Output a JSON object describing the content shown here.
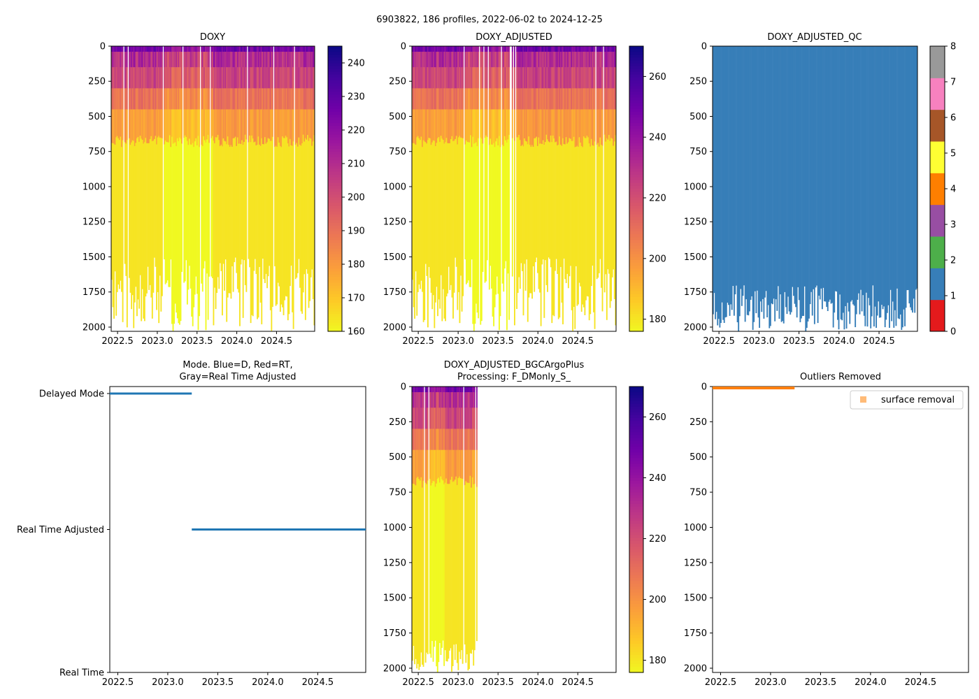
{
  "suptitle": "6903822, 186 profiles, 2022-06-02 to 2024-12-25",
  "colors": {
    "plasma": [
      "#0d0887",
      "#46039f",
      "#7201a8",
      "#9c179e",
      "#bd3786",
      "#d8576b",
      "#ed7953",
      "#fb9f3a",
      "#fdca26",
      "#f0f921"
    ],
    "qc": [
      "#e41a1c",
      "#377eb8",
      "#4daf4a",
      "#984ea3",
      "#ff7f00",
      "#ffff33",
      "#a65628",
      "#f781bf",
      "#999999"
    ],
    "mode_line": "#1f77b4",
    "outlier": "#ff7f0e",
    "outlier_legend_marker": "#ffbb78"
  },
  "chart_data": [
    {
      "id": "doxy",
      "type": "heatmap",
      "title": "DOXY",
      "xticks": [
        "2022.5",
        "2023.0",
        "2023.5",
        "2024.0",
        "2024.5"
      ],
      "xtick_values": [
        2022.5,
        2023.0,
        2023.5,
        2024.0,
        2024.5
      ],
      "xlim": [
        2022.42,
        2024.98
      ],
      "yticks": [
        "0",
        "250",
        "500",
        "750",
        "1000",
        "1250",
        "1500",
        "1750",
        "2000"
      ],
      "ytick_values": [
        0,
        250,
        500,
        750,
        1000,
        1250,
        1500,
        1750,
        2000
      ],
      "ylim": [
        2030,
        0
      ],
      "colorbar": {
        "ticks": [
          "160",
          "170",
          "180",
          "190",
          "200",
          "210",
          "220",
          "230",
          "240"
        ],
        "tick_values": [
          160,
          170,
          180,
          190,
          200,
          210,
          220,
          230,
          240
        ],
        "range": [
          160,
          245
        ]
      },
      "profile_time_range": [
        2022.42,
        2024.98
      ],
      "profiles": 186
    },
    {
      "id": "doxy_adj",
      "type": "heatmap",
      "title": "DOXY_ADJUSTED",
      "xticks": [
        "2022.5",
        "2023.0",
        "2023.5",
        "2024.0",
        "2024.5"
      ],
      "xtick_values": [
        2022.5,
        2023.0,
        2023.5,
        2024.0,
        2024.5
      ],
      "xlim": [
        2022.42,
        2024.98
      ],
      "yticks": [
        "0",
        "250",
        "500",
        "750",
        "1000",
        "1250",
        "1500",
        "1750",
        "2000"
      ],
      "ytick_values": [
        0,
        250,
        500,
        750,
        1000,
        1250,
        1500,
        1750,
        2000
      ],
      "ylim": [
        2030,
        0
      ],
      "colorbar": {
        "ticks": [
          "180",
          "200",
          "220",
          "240",
          "260"
        ],
        "tick_values": [
          180,
          200,
          220,
          240,
          260
        ],
        "range": [
          176,
          270
        ]
      },
      "profile_time_range": [
        2022.42,
        2024.98
      ],
      "profiles": 186
    },
    {
      "id": "doxy_qc",
      "type": "heatmap",
      "title": "DOXY_ADJUSTED_QC",
      "xticks": [
        "2022.5",
        "2023.0",
        "2023.5",
        "2024.0",
        "2024.5"
      ],
      "xtick_values": [
        2022.5,
        2023.0,
        2023.5,
        2024.0,
        2024.5
      ],
      "xlim": [
        2022.42,
        2024.98
      ],
      "yticks": [
        "0",
        "250",
        "500",
        "750",
        "1000",
        "1250",
        "1500",
        "1750",
        "2000"
      ],
      "ytick_values": [
        0,
        250,
        500,
        750,
        1000,
        1250,
        1500,
        1750,
        2000
      ],
      "ylim": [
        2030,
        0
      ],
      "colorbar": {
        "ticks": [
          "0",
          "1",
          "2",
          "3",
          "4",
          "5",
          "6",
          "7",
          "8"
        ],
        "tick_values": [
          0,
          1,
          2,
          3,
          4,
          5,
          6,
          7,
          8
        ],
        "range": [
          0,
          8
        ]
      },
      "qc_value_shown": 1,
      "profile_time_range": [
        2022.42,
        2024.98
      ]
    },
    {
      "id": "mode",
      "type": "line",
      "title": "Mode. Blue=D, Red=RT,\nGray=Real Time Adjusted",
      "title_lines": [
        "Mode. Blue=D, Red=RT,",
        "Gray=Real Time Adjusted"
      ],
      "xticks": [
        "2022.5",
        "2023.0",
        "2023.5",
        "2024.0",
        "2024.5"
      ],
      "xtick_values": [
        2022.5,
        2023.0,
        2023.5,
        2024.0,
        2024.5
      ],
      "xlim": [
        2022.42,
        2024.98
      ],
      "yticks": [
        "Delayed Mode",
        "Real Time Adjusted",
        "Real Time"
      ],
      "ytick_values": [
        2,
        1,
        0
      ],
      "ylim": [
        0,
        2
      ],
      "series": [
        {
          "name": "Delayed Mode",
          "level": 2,
          "x": [
            2022.42,
            2023.24
          ]
        },
        {
          "name": "Real Time Adjusted",
          "level": 1,
          "x": [
            2023.24,
            2024.98
          ]
        }
      ]
    },
    {
      "id": "plus",
      "type": "heatmap",
      "title": "DOXY_ADJUSTED_BGCArgoPlus\nProcessing: F_DMonly_S_",
      "title_lines": [
        "DOXY_ADJUSTED_BGCArgoPlus",
        "Processing: F_DMonly_S_"
      ],
      "xticks": [
        "2022.5",
        "2023.0",
        "2023.5",
        "2024.0",
        "2024.5"
      ],
      "xtick_values": [
        2022.5,
        2023.0,
        2023.5,
        2024.0,
        2024.5
      ],
      "xlim": [
        2022.42,
        2024.98
      ],
      "yticks": [
        "0",
        "250",
        "500",
        "750",
        "1000",
        "1250",
        "1500",
        "1750",
        "2000"
      ],
      "ytick_values": [
        0,
        250,
        500,
        750,
        1000,
        1250,
        1500,
        1750,
        2000
      ],
      "ylim": [
        2030,
        0
      ],
      "colorbar": {
        "ticks": [
          "180",
          "200",
          "220",
          "240",
          "260"
        ],
        "tick_values": [
          180,
          200,
          220,
          240,
          260
        ],
        "range": [
          176,
          270
        ]
      },
      "profile_time_range": [
        2022.42,
        2023.24
      ]
    },
    {
      "id": "outliers",
      "type": "scatter",
      "title": "Outliers Removed",
      "xticks": [
        "2022.5",
        "2023.0",
        "2023.5",
        "2024.0",
        "2024.5"
      ],
      "xtick_values": [
        2022.5,
        2023.0,
        2023.5,
        2024.0,
        2024.5
      ],
      "xlim": [
        2022.42,
        2024.98
      ],
      "yticks": [
        "0",
        "250",
        "500",
        "750",
        "1000",
        "1250",
        "1500",
        "1750",
        "2000"
      ],
      "ytick_values": [
        0,
        250,
        500,
        750,
        1000,
        1250,
        1500,
        1750,
        2000
      ],
      "ylim": [
        2030,
        0
      ],
      "legend": {
        "label": "surface removal",
        "location": "top-right"
      },
      "series": [
        {
          "name": "surface removal",
          "x_range": [
            2022.42,
            2023.24
          ],
          "depth_range": [
            0,
            10
          ]
        }
      ]
    }
  ]
}
